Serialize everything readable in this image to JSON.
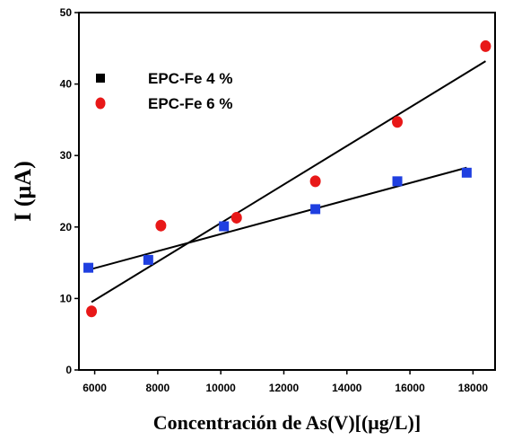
{
  "chart_data": {
    "type": "scatter",
    "title": "",
    "xlabel": "Concentración de As(V)[(μg/L)]",
    "ylabel": "I (μA)",
    "xlim": [
      5500,
      18700
    ],
    "ylim": [
      0,
      50
    ],
    "xticks": [
      6000,
      8000,
      10000,
      12000,
      14000,
      16000,
      18000
    ],
    "yticks": [
      0,
      10,
      20,
      30,
      40,
      50
    ],
    "grid": false,
    "legend_position": "top-left",
    "series": [
      {
        "name": "EPC-Fe 4 %",
        "marker": "square",
        "legend_marker_color": "#000000",
        "color": "#1f3fe0",
        "points": [
          [
            5800,
            14.3
          ],
          [
            7700,
            15.4
          ],
          [
            10100,
            20.1
          ],
          [
            13000,
            22.5
          ],
          [
            15600,
            26.4
          ],
          [
            17800,
            27.6
          ]
        ],
        "fit_line": [
          [
            5800,
            14.0
          ],
          [
            17800,
            28.3
          ]
        ]
      },
      {
        "name": "EPC-Fe 6 %",
        "marker": "circle",
        "legend_marker_color": "#e81818",
        "color": "#e81818",
        "points": [
          [
            5900,
            8.2
          ],
          [
            8100,
            20.2
          ],
          [
            10500,
            21.3
          ],
          [
            13000,
            26.4
          ],
          [
            15600,
            34.7
          ],
          [
            18400,
            45.3
          ]
        ],
        "fit_line": [
          [
            5900,
            9.5
          ],
          [
            18400,
            43.2
          ]
        ]
      }
    ]
  }
}
